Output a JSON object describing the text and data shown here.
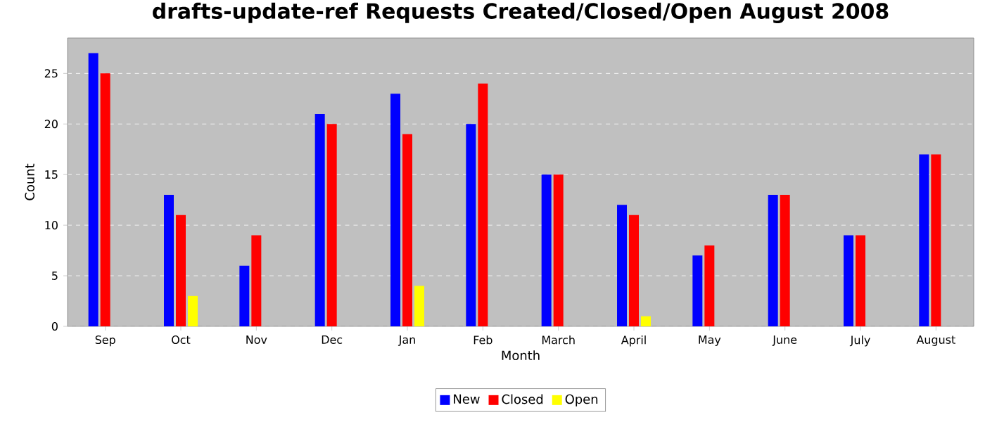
{
  "chart_data": {
    "type": "bar",
    "title": "drafts-update-ref Requests Created/Closed/Open August 2008",
    "xlabel": "Month",
    "ylabel": "Count",
    "categories": [
      "Sep",
      "Oct",
      "Nov",
      "Dec",
      "Jan",
      "Feb",
      "March",
      "April",
      "May",
      "June",
      "July",
      "August"
    ],
    "series": [
      {
        "name": "New",
        "color": "#0000ff",
        "values": [
          27,
          13,
          6,
          21,
          23,
          20,
          15,
          12,
          7,
          13,
          9,
          17
        ]
      },
      {
        "name": "Closed",
        "color": "#ff0000",
        "values": [
          25,
          11,
          9,
          20,
          19,
          24,
          15,
          11,
          8,
          13,
          9,
          17
        ]
      },
      {
        "name": "Open",
        "color": "#ffff00",
        "values": [
          0,
          3,
          0,
          0,
          4,
          0,
          0,
          1,
          0,
          0,
          0,
          0
        ]
      }
    ],
    "ylim": [
      0,
      28.5
    ],
    "yticks": [
      0,
      5,
      10,
      15,
      20,
      25
    ],
    "grid": "y",
    "legend": "bottom"
  }
}
